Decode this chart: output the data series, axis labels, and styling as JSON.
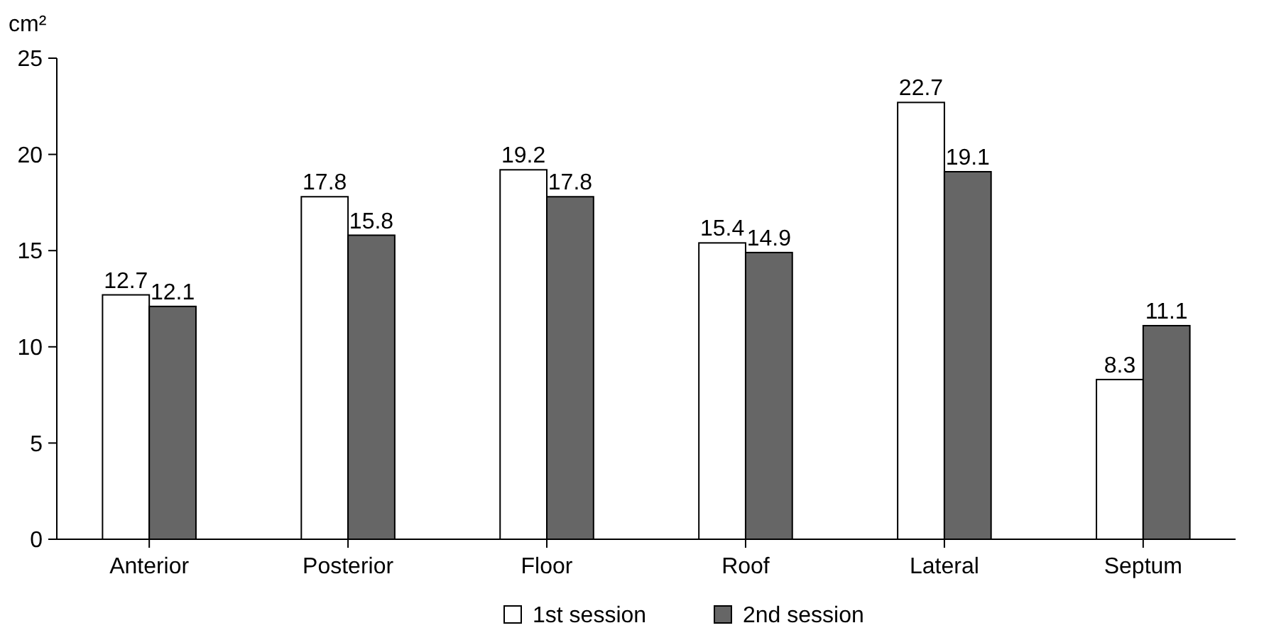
{
  "chart_data": {
    "type": "bar",
    "ylabel": "cm²",
    "categories": [
      "Anterior",
      "Posterior",
      "Floor",
      "Roof",
      "Lateral",
      "Septum"
    ],
    "series": [
      {
        "name": "1st session",
        "color": "#ffffff",
        "values": [
          12.7,
          17.8,
          19.2,
          15.4,
          22.7,
          8.3
        ]
      },
      {
        "name": "2nd session",
        "color": "#666666",
        "values": [
          12.1,
          15.8,
          17.8,
          14.9,
          19.1,
          11.1
        ]
      }
    ],
    "ylim": [
      0,
      25
    ],
    "yticks": [
      0,
      5,
      10,
      15,
      20,
      25
    ],
    "grid": false,
    "legend": "bottom",
    "data_labels": true
  }
}
